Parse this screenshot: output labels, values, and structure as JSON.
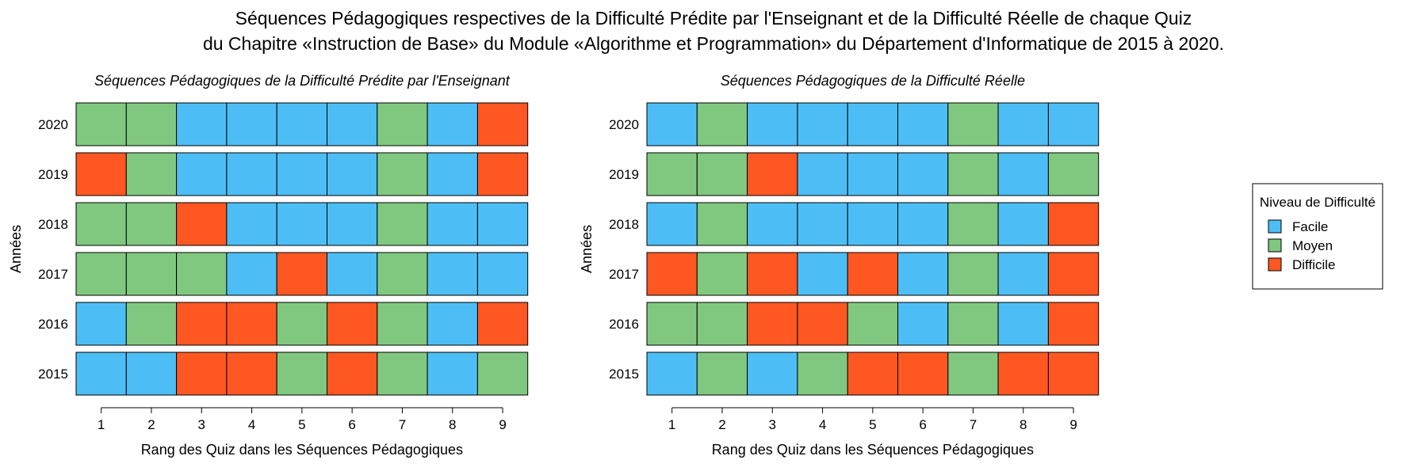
{
  "title_line1": "Séquences Pédagogiques respectives de la Difficulté Prédite par l'Enseignant et de la Difficulté Réelle de chaque Quiz",
  "title_line2": "du Chapitre «Instruction de Base» du Module «Algorithme et Programmation» du Département d'Informatique de 2015 à 2020.",
  "colors": {
    "Facile": "#4DBEF5",
    "Moyen": "#80C880",
    "Difficile": "#FF5722"
  },
  "legend": {
    "title": "Niveau de Difficulté",
    "entries": [
      "Facile",
      "Moyen",
      "Difficile"
    ]
  },
  "chart_data": [
    {
      "type": "heatmap",
      "title": "Séquences Pédagogiques de la Difficulté Prédite par l'Enseignant",
      "xlabel": "Rang des Quiz dans les Séquences Pédagogiques",
      "ylabel": "Années",
      "x": [
        "1",
        "2",
        "3",
        "4",
        "5",
        "6",
        "7",
        "8",
        "9"
      ],
      "y": [
        "2020",
        "2019",
        "2018",
        "2017",
        "2016",
        "2015"
      ],
      "values": [
        [
          "Moyen",
          "Moyen",
          "Facile",
          "Facile",
          "Facile",
          "Facile",
          "Moyen",
          "Facile",
          "Difficile"
        ],
        [
          "Difficile",
          "Moyen",
          "Facile",
          "Facile",
          "Facile",
          "Facile",
          "Moyen",
          "Facile",
          "Difficile"
        ],
        [
          "Moyen",
          "Moyen",
          "Difficile",
          "Facile",
          "Facile",
          "Facile",
          "Moyen",
          "Facile",
          "Facile"
        ],
        [
          "Moyen",
          "Moyen",
          "Moyen",
          "Facile",
          "Difficile",
          "Facile",
          "Moyen",
          "Facile",
          "Facile"
        ],
        [
          "Facile",
          "Moyen",
          "Difficile",
          "Difficile",
          "Moyen",
          "Difficile",
          "Moyen",
          "Facile",
          "Difficile"
        ],
        [
          "Facile",
          "Facile",
          "Difficile",
          "Difficile",
          "Moyen",
          "Difficile",
          "Moyen",
          "Facile",
          "Moyen"
        ]
      ]
    },
    {
      "type": "heatmap",
      "title": "Séquences Pédagogiques de la Difficulté Réelle",
      "xlabel": "Rang des Quiz dans les Séquences Pédagogiques",
      "ylabel": "Années",
      "x": [
        "1",
        "2",
        "3",
        "4",
        "5",
        "6",
        "7",
        "8",
        "9"
      ],
      "y": [
        "2020",
        "2019",
        "2018",
        "2017",
        "2016",
        "2015"
      ],
      "values": [
        [
          "Facile",
          "Moyen",
          "Facile",
          "Facile",
          "Facile",
          "Facile",
          "Moyen",
          "Facile",
          "Facile"
        ],
        [
          "Moyen",
          "Moyen",
          "Difficile",
          "Facile",
          "Facile",
          "Facile",
          "Moyen",
          "Facile",
          "Moyen"
        ],
        [
          "Facile",
          "Moyen",
          "Facile",
          "Facile",
          "Facile",
          "Facile",
          "Moyen",
          "Facile",
          "Difficile"
        ],
        [
          "Difficile",
          "Moyen",
          "Difficile",
          "Facile",
          "Difficile",
          "Facile",
          "Moyen",
          "Facile",
          "Difficile"
        ],
        [
          "Moyen",
          "Moyen",
          "Difficile",
          "Difficile",
          "Moyen",
          "Facile",
          "Moyen",
          "Facile",
          "Difficile"
        ],
        [
          "Facile",
          "Moyen",
          "Facile",
          "Moyen",
          "Difficile",
          "Difficile",
          "Moyen",
          "Difficile",
          "Difficile"
        ]
      ]
    }
  ]
}
